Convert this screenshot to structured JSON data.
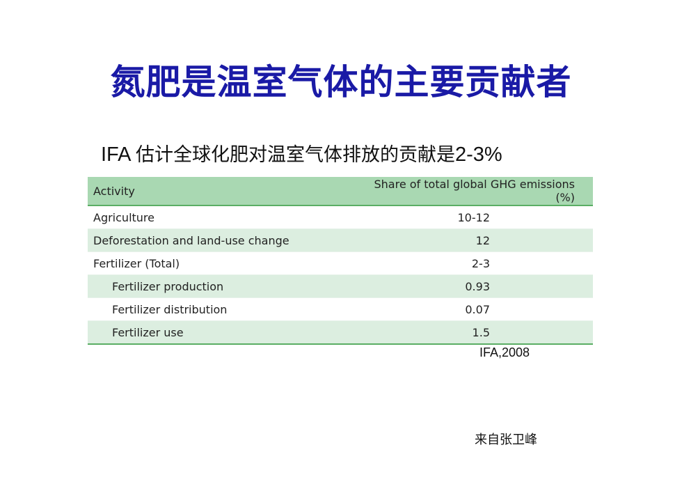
{
  "slide": {
    "title": "氮肥是温室气体的主要贡献者",
    "subtitle_prefix": "IFA ",
    "subtitle_middle": "估计全球化肥对温室气体排放的贡献是",
    "subtitle_suffix": "2-3%",
    "source": "IFA,2008",
    "credit": "来自张卫峰"
  },
  "table": {
    "headers": [
      "Activity",
      "Share of total global GHG emissions (%)"
    ],
    "rows": [
      {
        "activity": "Agriculture",
        "share": "10-12"
      },
      {
        "activity": "Deforestation and land-use change",
        "share": "12"
      },
      {
        "activity": "Fertilizer (Total)",
        "share": "2-3"
      },
      {
        "activity": "Fertilizer production",
        "share": "0.93"
      },
      {
        "activity": "Fertilizer distribution",
        "share": "0.07"
      },
      {
        "activity": "Fertilizer use",
        "share": "1.5"
      }
    ]
  },
  "colors": {
    "title": "#1a1aa6",
    "header_bg": "#a9d8b2",
    "row_shade": "#dceee0",
    "rule": "#5aae64"
  }
}
